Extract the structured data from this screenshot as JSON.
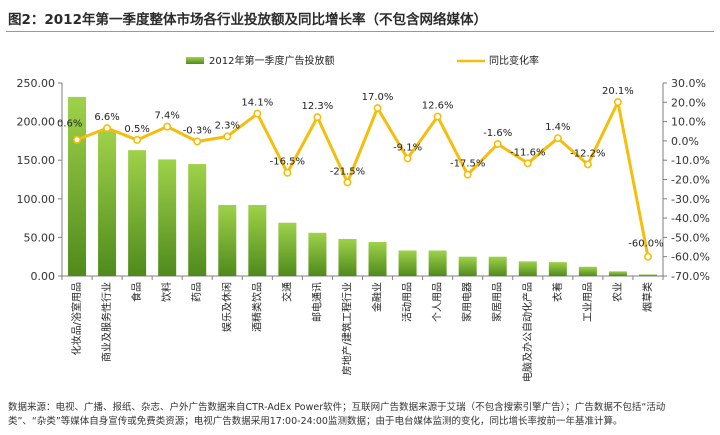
{
  "page_title": "图2：2012年第一季度整体市场各行业投放额及同比增长率（不包含网络媒体）",
  "footnote": {
    "line1": "数据来源：电视、广播、报纸、杂志、户外广告数据来自CTR-AdEx Power软件；互联网广告数据来源于艾瑞（不包含搜索引擎广告）；广告数据不包括“活动",
    "line2": "类”、“杂类”等媒体自身宣传或免费类资源；电视广告数据采用17:00-24:00监测数据；由于电台媒体监测的变化，同比增长率按前一年基准计算。"
  },
  "colors": {
    "bar_top": "#9fd24a",
    "bar_bottom": "#4f8a1c",
    "line": "#f5bd0c",
    "marker": "#ffffff",
    "axis": "#7f7f7f"
  },
  "chart_data": {
    "type": "bar+line",
    "title": "图2：2012年第一季度整体市场各行业投放额及同比增长率（不包含网络媒体）",
    "categories": [
      "化妆品/浴室用品",
      "商业及服务性行业",
      "食品",
      "饮料",
      "药品",
      "娱乐及休闲",
      "酒精类饮品",
      "交通",
      "邮电通讯",
      "房地产/建筑工程行业",
      "金融业",
      "活动用品",
      "个人用品",
      "家用电器",
      "家居用品",
      "电脑及办公自动化产品",
      "衣着",
      "工业用品",
      "农业",
      "烟草类"
    ],
    "series": [
      {
        "name": "2012年第一季度广告投放额",
        "type": "bar",
        "axis": "left",
        "values": [
          232,
          188,
          163,
          151,
          145,
          92,
          92,
          69,
          56,
          48,
          44,
          33,
          33,
          25,
          25,
          19,
          18,
          12,
          6,
          2
        ]
      },
      {
        "name": "同比变化率",
        "type": "line",
        "axis": "right",
        "values": [
          0.6,
          6.6,
          0.5,
          7.4,
          -0.3,
          2.3,
          14.1,
          -16.5,
          12.3,
          -21.5,
          17.0,
          -9.1,
          12.6,
          -17.5,
          -1.6,
          -11.6,
          1.4,
          -12.2,
          20.1,
          -60.0
        ],
        "labels": [
          "0.6%",
          "6.6%",
          "0.5%",
          "7.4%",
          "-0.3%",
          "2.3%",
          "14.1%",
          "-16.5%",
          "12.3%",
          "-21.5%",
          "17.0%",
          "-9.1%",
          "12.6%",
          "-17.5%",
          "-1.6%",
          "-11.6%",
          "1.4%",
          "-12.2%",
          "20.1%",
          "-60.0%"
        ]
      }
    ],
    "y_left": {
      "range": [
        0,
        250
      ],
      "ticks": [
        0,
        50,
        100,
        150,
        200,
        250
      ],
      "tick_labels": [
        "0.00",
        "50.00",
        "100.00",
        "150.00",
        "200.00",
        "250.00"
      ]
    },
    "y_right": {
      "range": [
        -70,
        30
      ],
      "ticks": [
        30,
        20,
        10,
        0,
        -10,
        -20,
        -30,
        -40,
        -50,
        -60,
        -70
      ],
      "tick_labels": [
        "30.0%",
        "20.0%",
        "10.0%",
        "0.0%",
        "-10.0%",
        "-20.0%",
        "-30.0%",
        "-40.0%",
        "-50.0%",
        "-60.0%",
        "-70.0%"
      ]
    },
    "legend": {
      "position": "top",
      "entries": [
        "2012年第一季度广告投放额",
        "同比变化率"
      ]
    },
    "grid": false
  }
}
